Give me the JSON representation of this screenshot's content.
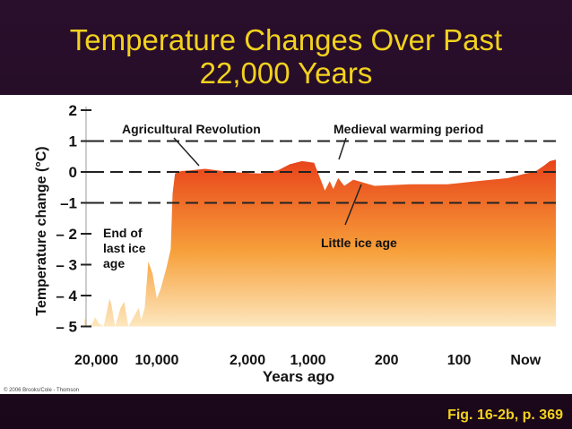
{
  "slide": {
    "title_line1": "Temperature Changes Over Past",
    "title_line2": "22,000 Years",
    "caption": "Fig. 16-2b, p. 369",
    "copyright": "© 2006 Brooks/Cole - Thomson"
  },
  "colors": {
    "title": "#f2d21e",
    "background": "#1c0a1e",
    "fill_top": "#e8421a",
    "fill_bottom": "#fde7bf"
  },
  "chart_data": {
    "type": "area",
    "title": "Temperature Changes Over Past 22,000 Years",
    "ylabel": "Temperature change (°C)",
    "xlabel": "Years ago",
    "ylim": [
      -5,
      2
    ],
    "y_ticks": [
      2,
      1,
      0,
      -1,
      -2,
      -3,
      -4,
      -5
    ],
    "y_tick_labels": [
      "2",
      "1",
      "0",
      "–1",
      "– 2",
      "– 3",
      "– 4",
      "– 5"
    ],
    "x_tick_labels": [
      "20,000",
      "10,000",
      "2,000",
      "1,000",
      "200",
      "100",
      "Now"
    ],
    "x_tick_positions": [
      0,
      1,
      2.5,
      3.5,
      4.8,
      6,
      7.1
    ],
    "x_range": [
      -0.2,
      7.6
    ],
    "reference_lines": [
      1,
      0,
      -1
    ],
    "series": [
      {
        "name": "Temperature change",
        "points": [
          [
            -0.2,
            -4.7
          ],
          [
            -0.15,
            -5.0
          ],
          [
            -0.07,
            -4.9
          ],
          [
            -0.02,
            -4.7
          ],
          [
            0.04,
            -4.9
          ],
          [
            0.12,
            -5.0
          ],
          [
            0.22,
            -4.1
          ],
          [
            0.25,
            -4.3
          ],
          [
            0.31,
            -5.0
          ],
          [
            0.4,
            -4.4
          ],
          [
            0.46,
            -4.2
          ],
          [
            0.53,
            -5.0
          ],
          [
            0.7,
            -4.4
          ],
          [
            0.74,
            -4.8
          ],
          [
            0.8,
            -4.4
          ],
          [
            0.86,
            -2.9
          ],
          [
            0.93,
            -3.3
          ],
          [
            1.0,
            -4.1
          ],
          [
            1.06,
            -3.8
          ],
          [
            1.16,
            -3.1
          ],
          [
            1.23,
            -2.5
          ],
          [
            1.26,
            -0.7
          ],
          [
            1.3,
            -0.05
          ],
          [
            1.4,
            0.03
          ],
          [
            1.55,
            0.05
          ],
          [
            1.8,
            0.1
          ],
          [
            2.2,
            0.0
          ],
          [
            2.7,
            -0.05
          ],
          [
            3.0,
            0.05
          ],
          [
            3.2,
            0.25
          ],
          [
            3.4,
            0.35
          ],
          [
            3.6,
            0.3
          ],
          [
            3.7,
            -0.2
          ],
          [
            3.78,
            -0.6
          ],
          [
            3.86,
            -0.3
          ],
          [
            3.92,
            -0.55
          ],
          [
            4.0,
            -0.2
          ],
          [
            4.1,
            -0.45
          ],
          [
            4.25,
            -0.25
          ],
          [
            4.6,
            -0.45
          ],
          [
            5.2,
            -0.4
          ],
          [
            5.8,
            -0.4
          ],
          [
            6.3,
            -0.3
          ],
          [
            6.8,
            -0.2
          ],
          [
            7.1,
            -0.05
          ],
          [
            7.25,
            -0.0
          ],
          [
            7.4,
            0.2
          ],
          [
            7.5,
            0.35
          ],
          [
            7.6,
            0.4
          ]
        ]
      }
    ],
    "annotations": [
      {
        "text": "Agricultural Revolution",
        "points_to": [
          1.48,
          0.03
        ]
      },
      {
        "text": "Medieval warming period",
        "points_to": [
          3.42,
          0.3
        ]
      },
      {
        "text": "Little ice age",
        "points_to": [
          3.82,
          -0.55
        ]
      },
      {
        "text": "End of last ice age",
        "lines": [
          "End of",
          "last ice",
          "age"
        ]
      }
    ]
  }
}
